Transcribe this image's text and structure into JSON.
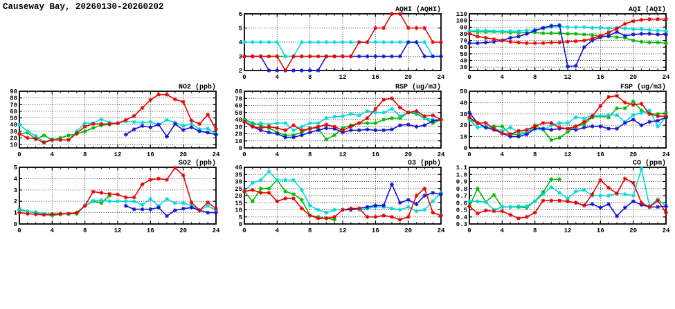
{
  "page_title": "Causeway Bay, 20260130-20260202",
  "colors": {
    "red": "#e60000",
    "green": "#00b800",
    "cyan": "#00d8d8",
    "blue": "#1010d0",
    "grid": "#222222",
    "axis": "#000000"
  },
  "chart_data": [
    {
      "type": "line",
      "title": "AQHI (AQHI)",
      "xlim": [
        0,
        24
      ],
      "xticks": [
        0,
        4,
        8,
        12,
        16,
        20,
        24
      ],
      "ylim": [
        2,
        6
      ],
      "yticks": [
        "2",
        "3",
        "4",
        "5",
        "6"
      ],
      "grid": true,
      "legend": "none",
      "series": [
        {
          "name": "green",
          "color": "#00b800",
          "x0": 0,
          "y": [
            3,
            3,
            3,
            3,
            3,
            3,
            3,
            3,
            3,
            3,
            3,
            3
          ]
        },
        {
          "name": "cyan",
          "color": "#00d8d8",
          "x0": 0,
          "y": [
            4,
            4,
            4,
            4,
            4,
            3,
            3,
            4,
            4,
            4,
            4,
            4,
            4,
            4,
            4,
            4,
            4,
            4,
            4,
            4,
            4,
            4,
            4,
            3,
            3
          ]
        },
        {
          "name": "blue",
          "color": "#1010d0",
          "x0": 0,
          "y": [
            3,
            3,
            3,
            2,
            2,
            2,
            2,
            2,
            2,
            2,
            3,
            3,
            3,
            3,
            3,
            3,
            3,
            3,
            3,
            3,
            4,
            4,
            3,
            3,
            3
          ]
        },
        {
          "name": "red",
          "color": "#e60000",
          "x0": 0,
          "y": [
            3,
            3,
            3,
            3,
            3,
            2,
            3,
            3,
            3,
            3,
            3,
            3,
            3,
            3,
            4,
            4,
            5,
            5,
            6,
            6,
            5,
            5,
            5,
            4,
            4
          ]
        }
      ]
    },
    {
      "type": "line",
      "title": "AQI (AQI)",
      "xlim": [
        0,
        24
      ],
      "xticks": [
        0,
        4,
        8,
        12,
        16,
        20,
        24
      ],
      "ylim": [
        25,
        110
      ],
      "yticks": [
        "30",
        "40",
        "50",
        "60",
        "70",
        "80",
        "90",
        "100",
        "110"
      ],
      "grid": true,
      "legend": "none",
      "series": [
        {
          "name": "green",
          "color": "#00b800",
          "x0": 0,
          "y": [
            84,
            83,
            83,
            83,
            83,
            82,
            82,
            82,
            82,
            81,
            81,
            81,
            80,
            80,
            79,
            78,
            77,
            76,
            75,
            74,
            70,
            68,
            67,
            67,
            66
          ]
        },
        {
          "name": "cyan",
          "color": "#00d8d8",
          "x0": 0,
          "y": [
            84,
            85,
            85,
            84,
            84,
            84,
            84,
            85,
            86,
            88,
            90,
            91,
            90,
            90,
            90,
            89,
            89,
            88,
            89,
            88,
            87,
            87,
            86,
            85,
            84
          ]
        },
        {
          "name": "blue",
          "color": "#1010d0",
          "x0": 0,
          "y": [
            66,
            66,
            67,
            68,
            70,
            74,
            76,
            80,
            85,
            89,
            92,
            93,
            31,
            32,
            60,
            70,
            75,
            77,
            83,
            77,
            79,
            80,
            80,
            79,
            79
          ]
        },
        {
          "name": "red",
          "color": "#e60000",
          "x0": 0,
          "y": [
            80,
            76,
            74,
            72,
            70,
            68,
            67,
            66,
            66,
            66,
            67,
            67,
            68,
            69,
            70,
            73,
            77,
            82,
            88,
            95,
            99,
            101,
            102,
            102,
            102
          ]
        }
      ]
    },
    {
      "type": "line",
      "title": "NO2 (ppb)",
      "xlim": [
        0,
        24
      ],
      "xticks": [
        0,
        4,
        8,
        12,
        16,
        20,
        24
      ],
      "ylim": [
        5,
        90
      ],
      "yticks": [
        "10",
        "20",
        "30",
        "40",
        "50",
        "60",
        "70",
        "80",
        "90"
      ],
      "grid": true,
      "legend": "none",
      "series": [
        {
          "name": "green",
          "color": "#00b800",
          "x0": 0,
          "y": [
            26,
            28,
            18,
            24,
            17,
            20,
            24,
            26,
            30,
            35,
            39,
            40
          ]
        },
        {
          "name": "cyan",
          "color": "#00d8d8",
          "x0": 0,
          "y": [
            40,
            30,
            23,
            14,
            18,
            17,
            17,
            30,
            42,
            42,
            48,
            43,
            42,
            45,
            44,
            43,
            44,
            40,
            47,
            43,
            38,
            41,
            33,
            34,
            26
          ]
        },
        {
          "name": "blue",
          "color": "#1010d0",
          "x0": 13,
          "y": [
            25,
            33,
            38,
            36,
            40,
            22,
            41,
            32,
            36,
            30,
            28,
            25
          ]
        },
        {
          "name": "red",
          "color": "#e60000",
          "x0": 0,
          "y": [
            26,
            20,
            19,
            13,
            17,
            17,
            17,
            27,
            37,
            41,
            41,
            41,
            42,
            47,
            53,
            65,
            77,
            85,
            85,
            78,
            74,
            46,
            41,
            55,
            33
          ]
        }
      ]
    },
    {
      "type": "line",
      "title": "RSP (ug/m3)",
      "xlim": [
        0,
        24
      ],
      "xticks": [
        0,
        4,
        8,
        12,
        16,
        20,
        24
      ],
      "ylim": [
        0,
        80
      ],
      "yticks": [
        "0",
        "10",
        "20",
        "30",
        "40",
        "50",
        "60",
        "70",
        "80"
      ],
      "grid": true,
      "legend": "none",
      "series": [
        {
          "name": "green",
          "color": "#00b800",
          "x0": 0,
          "y": [
            40,
            35,
            32,
            28,
            22,
            18,
            18,
            22,
            28,
            28,
            12,
            18,
            28,
            32,
            35,
            35,
            35,
            40,
            42,
            42,
            50,
            48,
            42,
            35,
            40
          ]
        },
        {
          "name": "cyan",
          "color": "#00d8d8",
          "x0": 0,
          "y": [
            38,
            32,
            35,
            33,
            35,
            35,
            25,
            30,
            35,
            35,
            42,
            44,
            45,
            48,
            46,
            52,
            50,
            50,
            55,
            45,
            50,
            50,
            42,
            40,
            40
          ]
        },
        {
          "name": "blue",
          "color": "#1010d0",
          "x0": 0,
          "y": [
            37,
            30,
            25,
            22,
            20,
            15,
            15,
            18,
            22,
            25,
            28,
            27,
            22,
            25,
            25,
            26,
            25,
            25,
            26,
            32,
            33,
            30,
            32,
            38,
            40
          ]
        },
        {
          "name": "red",
          "color": "#e60000",
          "x0": 0,
          "y": [
            37,
            30,
            28,
            30,
            28,
            25,
            32,
            25,
            27,
            30,
            33,
            30,
            25,
            30,
            35,
            42,
            55,
            68,
            70,
            57,
            50,
            52,
            45,
            46,
            40
          ]
        }
      ]
    },
    {
      "type": "line",
      "title": "FSP (ug/m3)",
      "xlim": [
        0,
        24
      ],
      "xticks": [
        0,
        4,
        8,
        12,
        16,
        20,
        24
      ],
      "ylim": [
        0,
        50
      ],
      "yticks": [
        "0",
        "10",
        "20",
        "30",
        "40",
        "50"
      ],
      "grid": true,
      "legend": "none",
      "series": [
        {
          "name": "green",
          "color": "#00b800",
          "x0": 0,
          "y": [
            25,
            22,
            18,
            19,
            19,
            12,
            12,
            13,
            20,
            16,
            7,
            9,
            14,
            19,
            21,
            27,
            28,
            27,
            35,
            35,
            41,
            33,
            30,
            30,
            31
          ]
        },
        {
          "name": "cyan",
          "color": "#00d8d8",
          "x0": 0,
          "y": [
            25,
            18,
            19,
            17,
            15,
            18,
            14,
            14,
            17,
            16,
            20,
            22,
            22,
            27,
            26,
            29,
            28,
            29,
            29,
            23,
            29,
            31,
            33,
            19,
            27
          ]
        },
        {
          "name": "blue",
          "color": "#1010d0",
          "x0": 0,
          "y": [
            31,
            22,
            18,
            16,
            13,
            10,
            10,
            12,
            17,
            17,
            16,
            17,
            17,
            16,
            18,
            19,
            19,
            17,
            17,
            22,
            25,
            20,
            23,
            24,
            27
          ]
        },
        {
          "name": "red",
          "color": "#e60000",
          "x0": 0,
          "y": [
            27,
            22,
            22,
            17,
            13,
            12,
            15,
            16,
            19,
            22,
            22,
            18,
            17,
            19,
            23,
            28,
            37,
            45,
            46,
            40,
            38,
            39,
            30,
            28,
            28
          ]
        }
      ]
    },
    {
      "type": "line",
      "title": "SO2 (ppb)",
      "xlim": [
        0,
        24
      ],
      "xticks": [
        0,
        4,
        8,
        12,
        16,
        20,
        24
      ],
      "ylim": [
        0,
        5
      ],
      "yticks": [
        "0",
        "1",
        "2",
        "3",
        "4",
        "5"
      ],
      "grid": true,
      "legend": "none",
      "series": [
        {
          "name": "green",
          "color": "#00b800",
          "x0": 0,
          "y": [
            1.3,
            1.1,
            1.0,
            0.85,
            0.75,
            0.85,
            0.9,
            0.9,
            1.6,
            2.0,
            1.85,
            2.5
          ]
        },
        {
          "name": "cyan",
          "color": "#00d8d8",
          "x0": 0,
          "y": [
            1.2,
            1.1,
            1.05,
            0.9,
            0.9,
            0.9,
            0.9,
            1.0,
            1.6,
            2.05,
            2.1,
            2.0,
            2.0,
            2.0,
            2.0,
            1.7,
            2.2,
            1.6,
            2.2,
            1.85,
            1.85,
            1.65,
            1.2,
            1.6,
            1.2
          ]
        },
        {
          "name": "blue",
          "color": "#1010d0",
          "x0": 13,
          "y": [
            1.6,
            1.3,
            1.3,
            1.3,
            1.45,
            0.7,
            1.2,
            1.35,
            1.45,
            1.2,
            1.0,
            1.0
          ]
        },
        {
          "name": "red",
          "color": "#e60000",
          "x0": 0,
          "y": [
            1.0,
            0.9,
            0.85,
            0.8,
            0.85,
            0.9,
            0.9,
            1.0,
            1.6,
            2.85,
            2.75,
            2.65,
            2.6,
            2.35,
            2.35,
            3.5,
            3.9,
            4.0,
            3.9,
            4.95,
            4.3,
            1.9,
            1.2,
            1.9,
            1.35
          ]
        }
      ]
    },
    {
      "type": "line",
      "title": "O3 (ppb)",
      "xlim": [
        0,
        24
      ],
      "xticks": [
        0,
        4,
        8,
        12,
        16,
        20,
        24
      ],
      "ylim": [
        0,
        40
      ],
      "yticks": [
        "0",
        "5",
        "10",
        "15",
        "20",
        "25",
        "30",
        "35",
        "40"
      ],
      "grid": true,
      "legend": "none",
      "series": [
        {
          "name": "green",
          "color": "#00b800",
          "x0": 0,
          "y": [
            23,
            16,
            25,
            25,
            31,
            23,
            21,
            17,
            6,
            5,
            4,
            3
          ]
        },
        {
          "name": "cyan",
          "color": "#00d8d8",
          "x0": 0,
          "y": [
            23,
            29,
            31,
            37,
            31,
            31,
            31,
            24,
            13,
            10,
            8,
            10,
            10,
            11,
            10,
            11,
            12,
            12,
            11,
            10,
            12,
            9,
            10,
            16,
            22
          ]
        },
        {
          "name": "blue",
          "color": "#1010d0",
          "x0": 12,
          "y": [
            10,
            10,
            11,
            12,
            13,
            13,
            28,
            15,
            17,
            14,
            20,
            22,
            21
          ]
        },
        {
          "name": "red",
          "color": "#e60000",
          "x0": 0,
          "y": [
            23,
            24,
            22,
            22,
            16,
            18,
            18,
            11,
            6,
            4,
            4,
            5,
            10,
            11,
            11,
            5,
            5,
            6,
            5,
            3,
            5,
            20,
            25,
            8,
            6
          ]
        }
      ]
    },
    {
      "type": "line",
      "title": "CO (ppm)",
      "xlim": [
        0,
        24
      ],
      "xticks": [
        0,
        4,
        8,
        12,
        16,
        20,
        24
      ],
      "ylim": [
        0.3,
        1.1
      ],
      "yticks": [
        "0.3",
        "0.4",
        "0.5",
        "0.6",
        "0.7",
        "0.8",
        "0.9",
        "1.0",
        "1.1"
      ],
      "grid": true,
      "legend": "none",
      "series": [
        {
          "name": "green",
          "color": "#00b800",
          "x0": 0,
          "y": [
            0.55,
            0.8,
            0.61,
            0.71,
            0.54,
            0.54,
            0.54,
            0.53,
            0.62,
            0.75,
            0.93,
            0.93
          ]
        },
        {
          "name": "cyan",
          "color": "#00d8d8",
          "x0": 0,
          "y": [
            0.62,
            0.62,
            0.61,
            0.5,
            0.54,
            0.54,
            0.55,
            0.55,
            0.62,
            0.72,
            0.82,
            0.74,
            0.66,
            0.76,
            0.78,
            0.7,
            0.7,
            0.7,
            0.73,
            0.72,
            0.7,
            1.08,
            0.55,
            0.65,
            0.55
          ]
        },
        {
          "name": "blue",
          "color": "#1010d0",
          "x0": 13,
          "y": [
            0.6,
            0.56,
            0.58,
            0.53,
            0.58,
            0.41,
            0.53,
            0.62,
            0.57,
            0.54,
            0.54,
            0.55
          ]
        },
        {
          "name": "red",
          "color": "#e60000",
          "x0": 0,
          "y": [
            0.55,
            0.45,
            0.49,
            0.48,
            0.48,
            0.43,
            0.38,
            0.4,
            0.46,
            0.63,
            0.63,
            0.63,
            0.62,
            0.6,
            0.56,
            0.72,
            0.92,
            0.81,
            0.73,
            0.94,
            0.88,
            0.6,
            0.54,
            0.63,
            0.46
          ]
        }
      ]
    }
  ]
}
